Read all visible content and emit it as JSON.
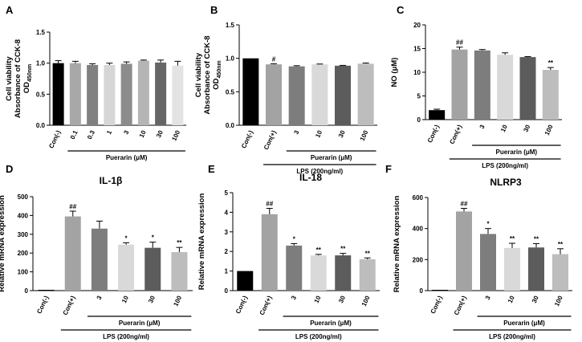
{
  "colors": {
    "con_neg": "#000000",
    "con_pos": "#a3a3a3",
    "dose_3": "#7d7d7d",
    "dose_10": "#d9d9d9",
    "dose_30": "#5c5c5c",
    "dose_100": "#bdbdbd",
    "panel_a": [
      "#000000",
      "#a8a8a8",
      "#808080",
      "#d6d6d6",
      "#8c8c8c",
      "#b5b5b5",
      "#666666",
      "#e3e3e3"
    ],
    "axis": "#000000"
  },
  "chart_data": [
    {
      "id": "A",
      "panel_label": "A",
      "type": "bar",
      "title": "",
      "ylabel_lines": [
        "Cell viability",
        "Absorbance of CCK-8"
      ],
      "ylabel_od": {
        "main": "OD",
        "sub": "450nm"
      },
      "ylim": [
        0,
        1.5
      ],
      "yticks": [
        0.0,
        0.5,
        1.0,
        1.5
      ],
      "ytick_labels": [
        "0.0",
        "0.5",
        "1.0",
        "1.5"
      ],
      "categories": [
        "Con(-)",
        "0.1",
        "0.3",
        "1",
        "3",
        "10",
        "30",
        "100"
      ],
      "values": [
        1.0,
        1.0,
        0.97,
        0.97,
        0.99,
        1.04,
        1.01,
        0.96
      ],
      "errors": [
        0.04,
        0.03,
        0.02,
        0.03,
        0.03,
        0.01,
        0.04,
        0.07
      ],
      "annotations": [
        "",
        "",
        "",
        "",
        "",
        "",
        "",
        ""
      ],
      "groups": [
        {
          "label": "Puerarin (μM)",
          "from": 1,
          "to": 7
        }
      ]
    },
    {
      "id": "B",
      "panel_label": "B",
      "type": "bar",
      "title": "",
      "ylabel_lines": [
        "Cell viability",
        "Absorbance of CCK-8"
      ],
      "ylabel_od": {
        "main": "OD",
        "sub": "450nm"
      },
      "ylim": [
        0,
        1.5
      ],
      "yticks": [
        0.0,
        0.5,
        1.0,
        1.5
      ],
      "ytick_labels": [
        "0.0",
        "0.5",
        "1.0",
        "1.5"
      ],
      "categories": [
        "Con(-)",
        "Con(+)",
        "3",
        "10",
        "30",
        "100"
      ],
      "values": [
        1.0,
        0.91,
        0.88,
        0.91,
        0.89,
        0.92
      ],
      "errors": [
        0.0,
        0.01,
        0.01,
        0.005,
        0.005,
        0.01
      ],
      "annotations": [
        "",
        "#",
        "",
        "",
        "",
        ""
      ],
      "groups": [
        {
          "label": "Puerarin (μM)",
          "from": 2,
          "to": 5
        },
        {
          "label": "LPS (200ng/ml)",
          "from": 1,
          "to": 5
        }
      ]
    },
    {
      "id": "C",
      "panel_label": "C",
      "type": "bar",
      "title": "",
      "ylabel_lines": [
        "NO (μM)"
      ],
      "ylim": [
        0,
        20
      ],
      "yticks": [
        0,
        5,
        10,
        15,
        20
      ],
      "ytick_labels": [
        "0",
        "5",
        "10",
        "15",
        "20"
      ],
      "categories": [
        "Con(-)",
        "Con(+)",
        "3",
        "10",
        "30",
        "100"
      ],
      "values": [
        2.0,
        14.8,
        14.6,
        13.7,
        13.2,
        10.5
      ],
      "errors": [
        0.2,
        0.5,
        0.2,
        0.4,
        0.1,
        0.5
      ],
      "annotations": [
        "",
        "##",
        "",
        "",
        "",
        "**"
      ],
      "groups": [
        {
          "label": "Puerarin (μM)",
          "from": 2,
          "to": 5
        },
        {
          "label": "LPS (200ng/ml)",
          "from": 1,
          "to": 5
        }
      ]
    },
    {
      "id": "D",
      "panel_label": "D",
      "type": "bar",
      "title": "IL-1β",
      "ylabel_lines": [
        "Relative mRNA expression"
      ],
      "ylim": [
        0,
        500
      ],
      "yticks": [
        0,
        100,
        200,
        300,
        400,
        500
      ],
      "ytick_labels": [
        "0",
        "100",
        "200",
        "300",
        "400",
        "500"
      ],
      "categories": [
        "Con(-)",
        "Con(+)",
        "3",
        "10",
        "30",
        "100"
      ],
      "values": [
        1,
        395,
        330,
        245,
        228,
        205
      ],
      "errors": [
        0,
        28,
        40,
        10,
        30,
        25
      ],
      "annotations": [
        "",
        "##",
        "",
        "*",
        "*",
        "**"
      ],
      "groups": [
        {
          "label": "Puerarin (μM)",
          "from": 2,
          "to": 5
        },
        {
          "label": "LPS (200ng/ml)",
          "from": 1,
          "to": 5
        }
      ]
    },
    {
      "id": "E",
      "panel_label": "E",
      "type": "bar",
      "title": "IL-18",
      "ylabel_lines": [
        "Relative mRNA expression"
      ],
      "ylim": [
        0,
        5
      ],
      "yticks": [
        0,
        1,
        2,
        3,
        4,
        5
      ],
      "ytick_labels": [
        "0",
        "1",
        "2",
        "3",
        "4",
        "5"
      ],
      "categories": [
        "Con(-)",
        "Con(+)",
        "3",
        "10",
        "30",
        "100"
      ],
      "values": [
        1.0,
        3.9,
        2.3,
        1.8,
        1.8,
        1.6
      ],
      "errors": [
        0,
        0.3,
        0.1,
        0.05,
        0.1,
        0.07
      ],
      "annotations": [
        "",
        "##",
        "*",
        "**",
        "**",
        "**"
      ],
      "groups": [
        {
          "label": "Puerarin (μM)",
          "from": 2,
          "to": 5
        },
        {
          "label": "LPS (200ng/ml)",
          "from": 1,
          "to": 5
        }
      ]
    },
    {
      "id": "F",
      "panel_label": "F",
      "type": "bar",
      "title": "NLRP3",
      "ylabel_lines": [
        "Relative mRNA expression"
      ],
      "ylim": [
        0,
        600
      ],
      "yticks": [
        0,
        200,
        400,
        600
      ],
      "ytick_labels": [
        "0",
        "200",
        "400",
        "600"
      ],
      "categories": [
        "Con(-)",
        "Con(+)",
        "3",
        "10",
        "30",
        "100"
      ],
      "values": [
        1,
        510,
        365,
        275,
        278,
        235
      ],
      "errors": [
        0,
        20,
        35,
        30,
        25,
        35
      ],
      "annotations": [
        "",
        "##",
        "*",
        "**",
        "**",
        "**"
      ],
      "groups": [
        {
          "label": "Puerarin (μM)",
          "from": 2,
          "to": 5
        },
        {
          "label": "LPS (200ng/ml)",
          "from": 1,
          "to": 5
        }
      ]
    }
  ]
}
